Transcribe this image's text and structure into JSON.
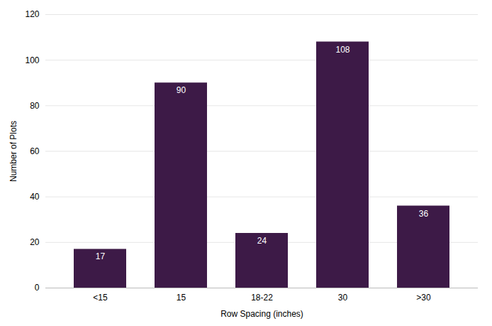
{
  "chart_data": {
    "type": "bar",
    "categories": [
      "<15",
      "15",
      "18-22",
      "30",
      ">30"
    ],
    "values": [
      17,
      90,
      24,
      108,
      36
    ],
    "color": "#3d1a47",
    "xlabel": "Row Spacing (inches)",
    "ylabel": "Number of Plots",
    "ylim": [
      0,
      120
    ],
    "yticks": [
      0,
      20,
      40,
      60,
      80,
      100,
      120
    ],
    "grid": true,
    "data_labels": true
  }
}
